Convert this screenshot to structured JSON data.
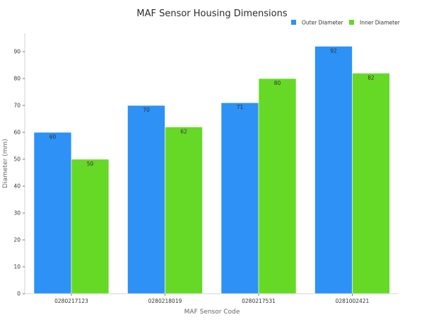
{
  "chart_data": {
    "type": "bar",
    "title": "MAF Sensor Housing Dimensions",
    "xlabel": "MAF Sensor Code",
    "ylabel": "Diameter (mm)",
    "categories": [
      "0280217123",
      "0280218019",
      "0280217531",
      "0281002421"
    ],
    "series": [
      {
        "name": "Outer Diameter",
        "values": [
          60,
          70,
          71,
          92
        ],
        "color": "#2d91f5"
      },
      {
        "name": "Inner Diameter",
        "values": [
          50,
          62,
          80,
          82
        ],
        "color": "#66d926"
      }
    ],
    "ylim": [
      0,
      96
    ],
    "yticks": [
      0,
      10,
      20,
      30,
      40,
      50,
      60,
      70,
      80,
      90
    ],
    "grid": false,
    "legend": "top-right"
  }
}
